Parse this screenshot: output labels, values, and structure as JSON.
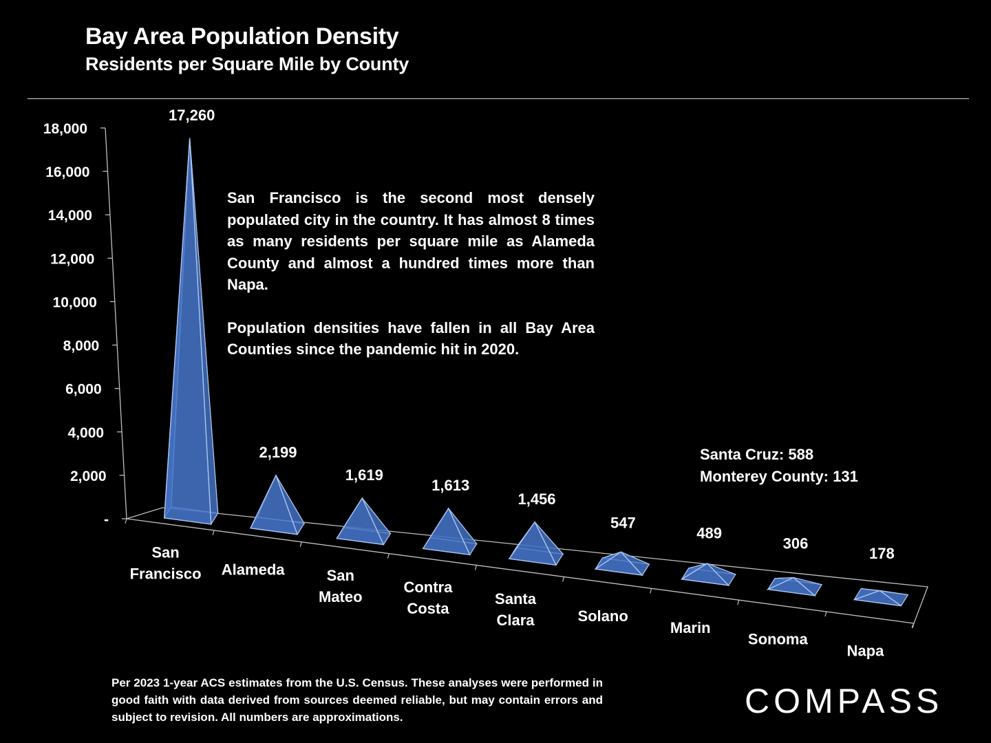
{
  "header": {
    "title": "Bay Area Population Density",
    "subtitle": "Residents per Square Mile by County"
  },
  "annotation": {
    "paragraph1": "San Francisco is the second most densely populated city in the country. It has almost 8 times as many residents per square mile as Alameda County and almost a hundred times more than Napa.",
    "paragraph2": "Population densities have fallen in all Bay Area Counties since the pandemic hit in 2020."
  },
  "extra_counties": {
    "line1": "Santa Cruz:  588",
    "line2": "Monterey County:  131"
  },
  "footnote": "Per 2023 1-year ACS estimates from the U.S. Census. These analyses were performed in good faith with data derived from sources deemed reliable, but may contain errors and subject to revision. All numbers are approximations.",
  "logo": {
    "text": "COMPASS"
  },
  "colors": {
    "pyramid_fill": "#4472c4",
    "pyramid_edge": "#a9c5ee",
    "axis": "#bfbfbf",
    "background": "#000000"
  },
  "chart_data": {
    "type": "bar",
    "bar_shape": "3d-pyramid",
    "title": "Bay Area Population Density",
    "subtitle": "Residents per Square Mile by County",
    "categories": [
      [
        "San",
        "Francisco"
      ],
      [
        "Alameda"
      ],
      [
        "San",
        "Mateo"
      ],
      [
        "Contra",
        "Costa"
      ],
      [
        "Santa",
        "Clara"
      ],
      [
        "Solano"
      ],
      [
        "Marin"
      ],
      [
        "Sonoma"
      ],
      [
        "Napa"
      ]
    ],
    "values": [
      17260,
      2199,
      1619,
      1613,
      1456,
      547,
      489,
      306,
      178
    ],
    "value_labels": [
      "17,260",
      "2,199",
      "1,619",
      "1,613",
      "1,456",
      "547",
      "489",
      "306",
      "178"
    ],
    "ylim": [
      0,
      18000
    ],
    "yticks": [
      0,
      2000,
      4000,
      6000,
      8000,
      10000,
      12000,
      14000,
      16000,
      18000
    ],
    "ytick_labels": [
      "-",
      "2,000",
      "4,000",
      "6,000",
      "8,000",
      "10,000",
      "12,000",
      "14,000",
      "16,000",
      "18,000"
    ],
    "grid": false,
    "legend": "none"
  }
}
